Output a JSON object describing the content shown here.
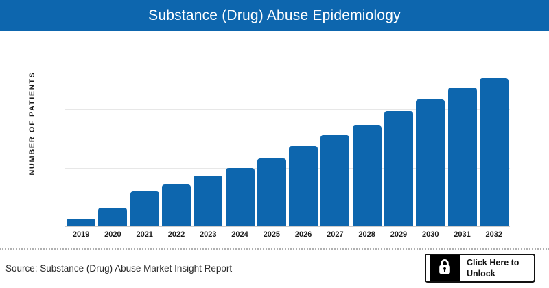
{
  "header": {
    "title": "Substance (Drug) Abuse Epidemiology"
  },
  "chart_data": {
    "type": "bar",
    "title": "Substance (Drug) Abuse Epidemiology",
    "categories": [
      "2019",
      "2020",
      "2021",
      "2022",
      "2023",
      "2024",
      "2025",
      "2026",
      "2027",
      "2028",
      "2029",
      "2030",
      "2031",
      "2032"
    ],
    "values": [
      4.3,
      10.5,
      19.8,
      23.7,
      28.8,
      33.1,
      38.5,
      45.5,
      51.8,
      57.2,
      65.4,
      72.0,
      78.6,
      84.0
    ],
    "xlabel": "",
    "ylabel": "NUMBER OF PATIENTS",
    "ylim": [
      0,
      100
    ],
    "y_tick_labels_visible": false,
    "gridlines": "3 horizontal unlabeled gridlines, evenly spaced",
    "legend": "none",
    "note": "Y-axis tick values are hidden in the source image; bar values are estimated relative units where the top gridline equals 100"
  },
  "footer": {
    "source_label": "Source: Substance (Drug) Abuse Market Insight Report",
    "unlock_button": {
      "icon": "lock-icon",
      "label_line1": "Click Here to",
      "label_line2": "Unlock"
    }
  },
  "colors": {
    "banner_bg": "#0d66ae",
    "banner_text": "#ffffff",
    "bar": "#0d66ae",
    "gridline": "#e7e7e7",
    "axis_line": "#cccccc",
    "button_border": "#111111",
    "button_icon_bg": "#000000"
  }
}
